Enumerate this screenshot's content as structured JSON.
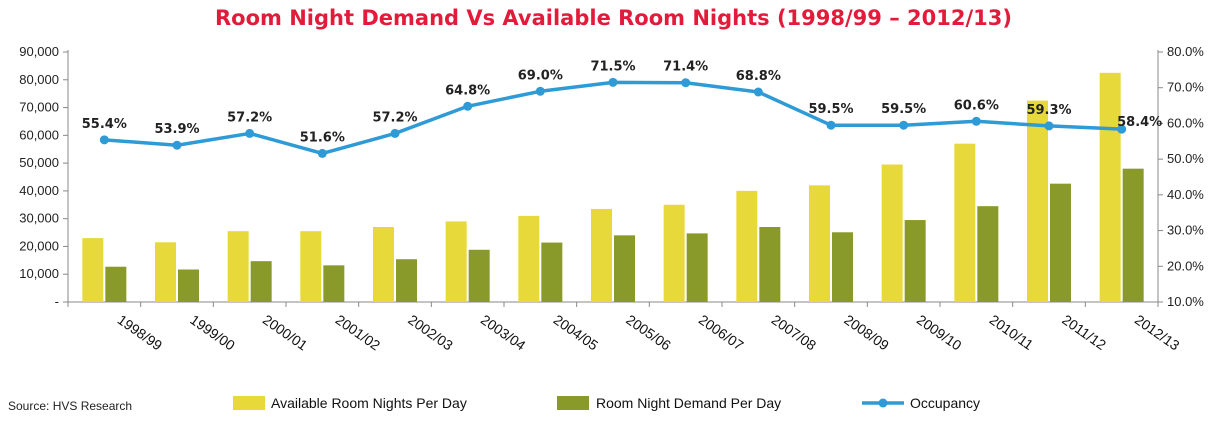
{
  "chart_data": {
    "type": "bar",
    "title": "Room Night Demand Vs Available Room Nights (1998/99 – 2012/13)",
    "categories": [
      "1998/99",
      "1999/00",
      "2000/01",
      "2001/02",
      "2002/03",
      "2003/04",
      "2004/05",
      "2005/06",
      "2006/07",
      "2007/08",
      "2008/09",
      "2009/10",
      "2010/11",
      "2011/12",
      "2012/13"
    ],
    "series": [
      {
        "name": "Available Room Nights Per Day",
        "kind": "bar",
        "axis": "left",
        "color": "#e8d93a",
        "values": [
          23000,
          21500,
          25500,
          25500,
          27000,
          29000,
          31000,
          33500,
          35000,
          40000,
          42000,
          49500,
          57000,
          72500,
          82500
        ]
      },
      {
        "name": "Room Night Demand Per Day",
        "kind": "bar",
        "axis": "left",
        "color": "#8a9a2a",
        "values": [
          12700,
          11700,
          14700,
          13200,
          15400,
          18800,
          21400,
          24000,
          24700,
          27000,
          25100,
          29500,
          34500,
          42600,
          48000
        ]
      },
      {
        "name": "Occupancy",
        "kind": "line",
        "axis": "right",
        "color": "#2e9bd6",
        "values": [
          55.4,
          53.9,
          57.2,
          51.6,
          57.2,
          64.8,
          69.0,
          71.5,
          71.4,
          68.8,
          59.5,
          59.5,
          60.6,
          59.3,
          58.4
        ],
        "labels": [
          "55.4%",
          "53.9%",
          "57.2%",
          "51.6%",
          "57.2%",
          "64.8%",
          "69.0%",
          "71.5%",
          "71.4%",
          "68.8%",
          "59.5%",
          "59.5%",
          "60.6%",
          "59.3%",
          "58.4%"
        ]
      }
    ],
    "y_left": {
      "min": 0,
      "max": 90000,
      "step": 10000,
      "tick_labels": [
        "-",
        "10,000",
        "20,000",
        "30,000",
        "40,000",
        "50,000",
        "60,000",
        "70,000",
        "80,000",
        "90,000"
      ]
    },
    "y_right": {
      "min": 10,
      "max": 80,
      "step": 10,
      "tick_labels": [
        "10.0%",
        "20.0%",
        "30.0%",
        "40.0%",
        "50.0%",
        "60.0%",
        "70.0%",
        "80.0%"
      ]
    },
    "legend_position": "bottom",
    "grid": false,
    "source": "Source: HVS Research"
  }
}
